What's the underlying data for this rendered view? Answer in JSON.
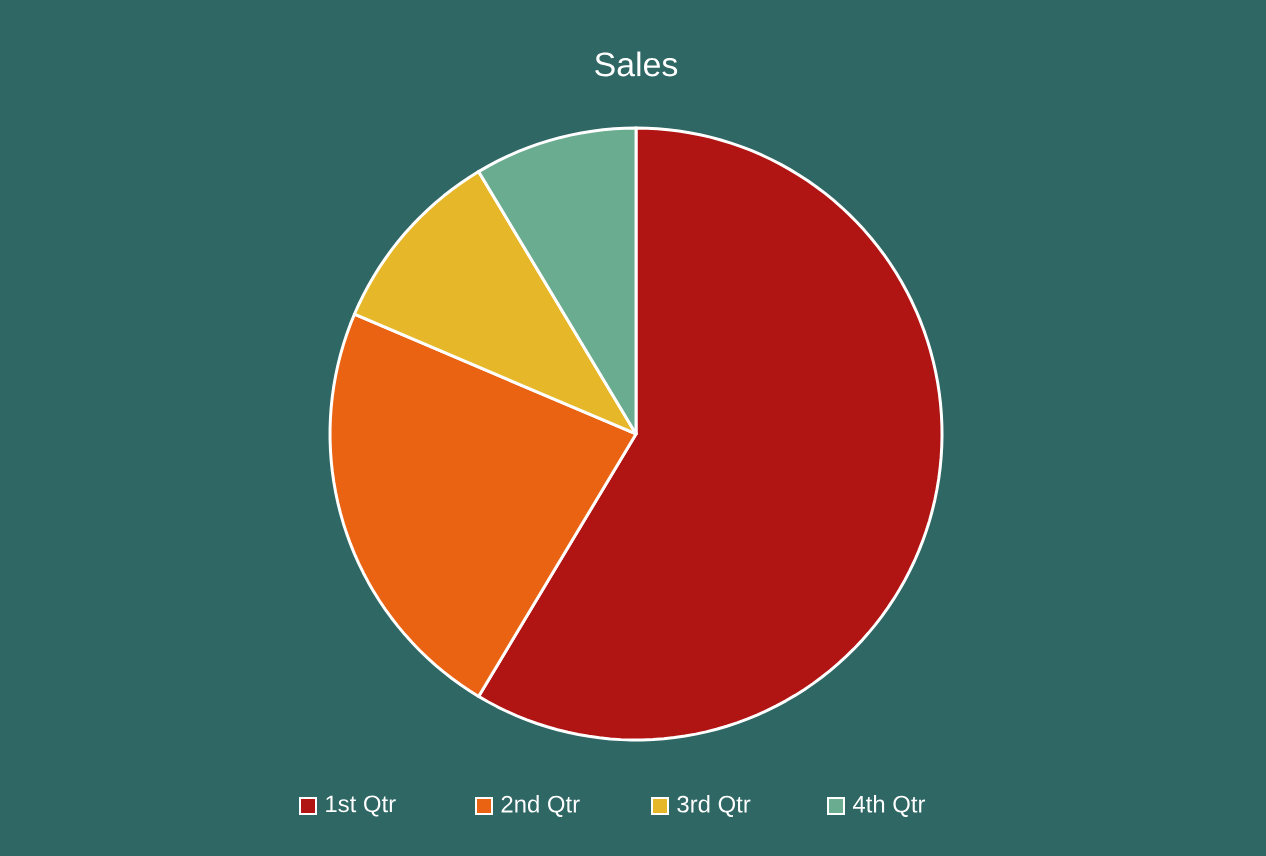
{
  "chart_data": {
    "type": "pie",
    "title": "Sales",
    "categories": [
      "1st Qtr",
      "2nd Qtr",
      "3rd Qtr",
      "4th Qtr"
    ],
    "values": [
      58.6,
      22.8,
      10.0,
      8.6
    ],
    "colors": [
      "#b01513",
      "#ea6312",
      "#e6b729",
      "#6aac90"
    ],
    "legend": "bottom"
  }
}
